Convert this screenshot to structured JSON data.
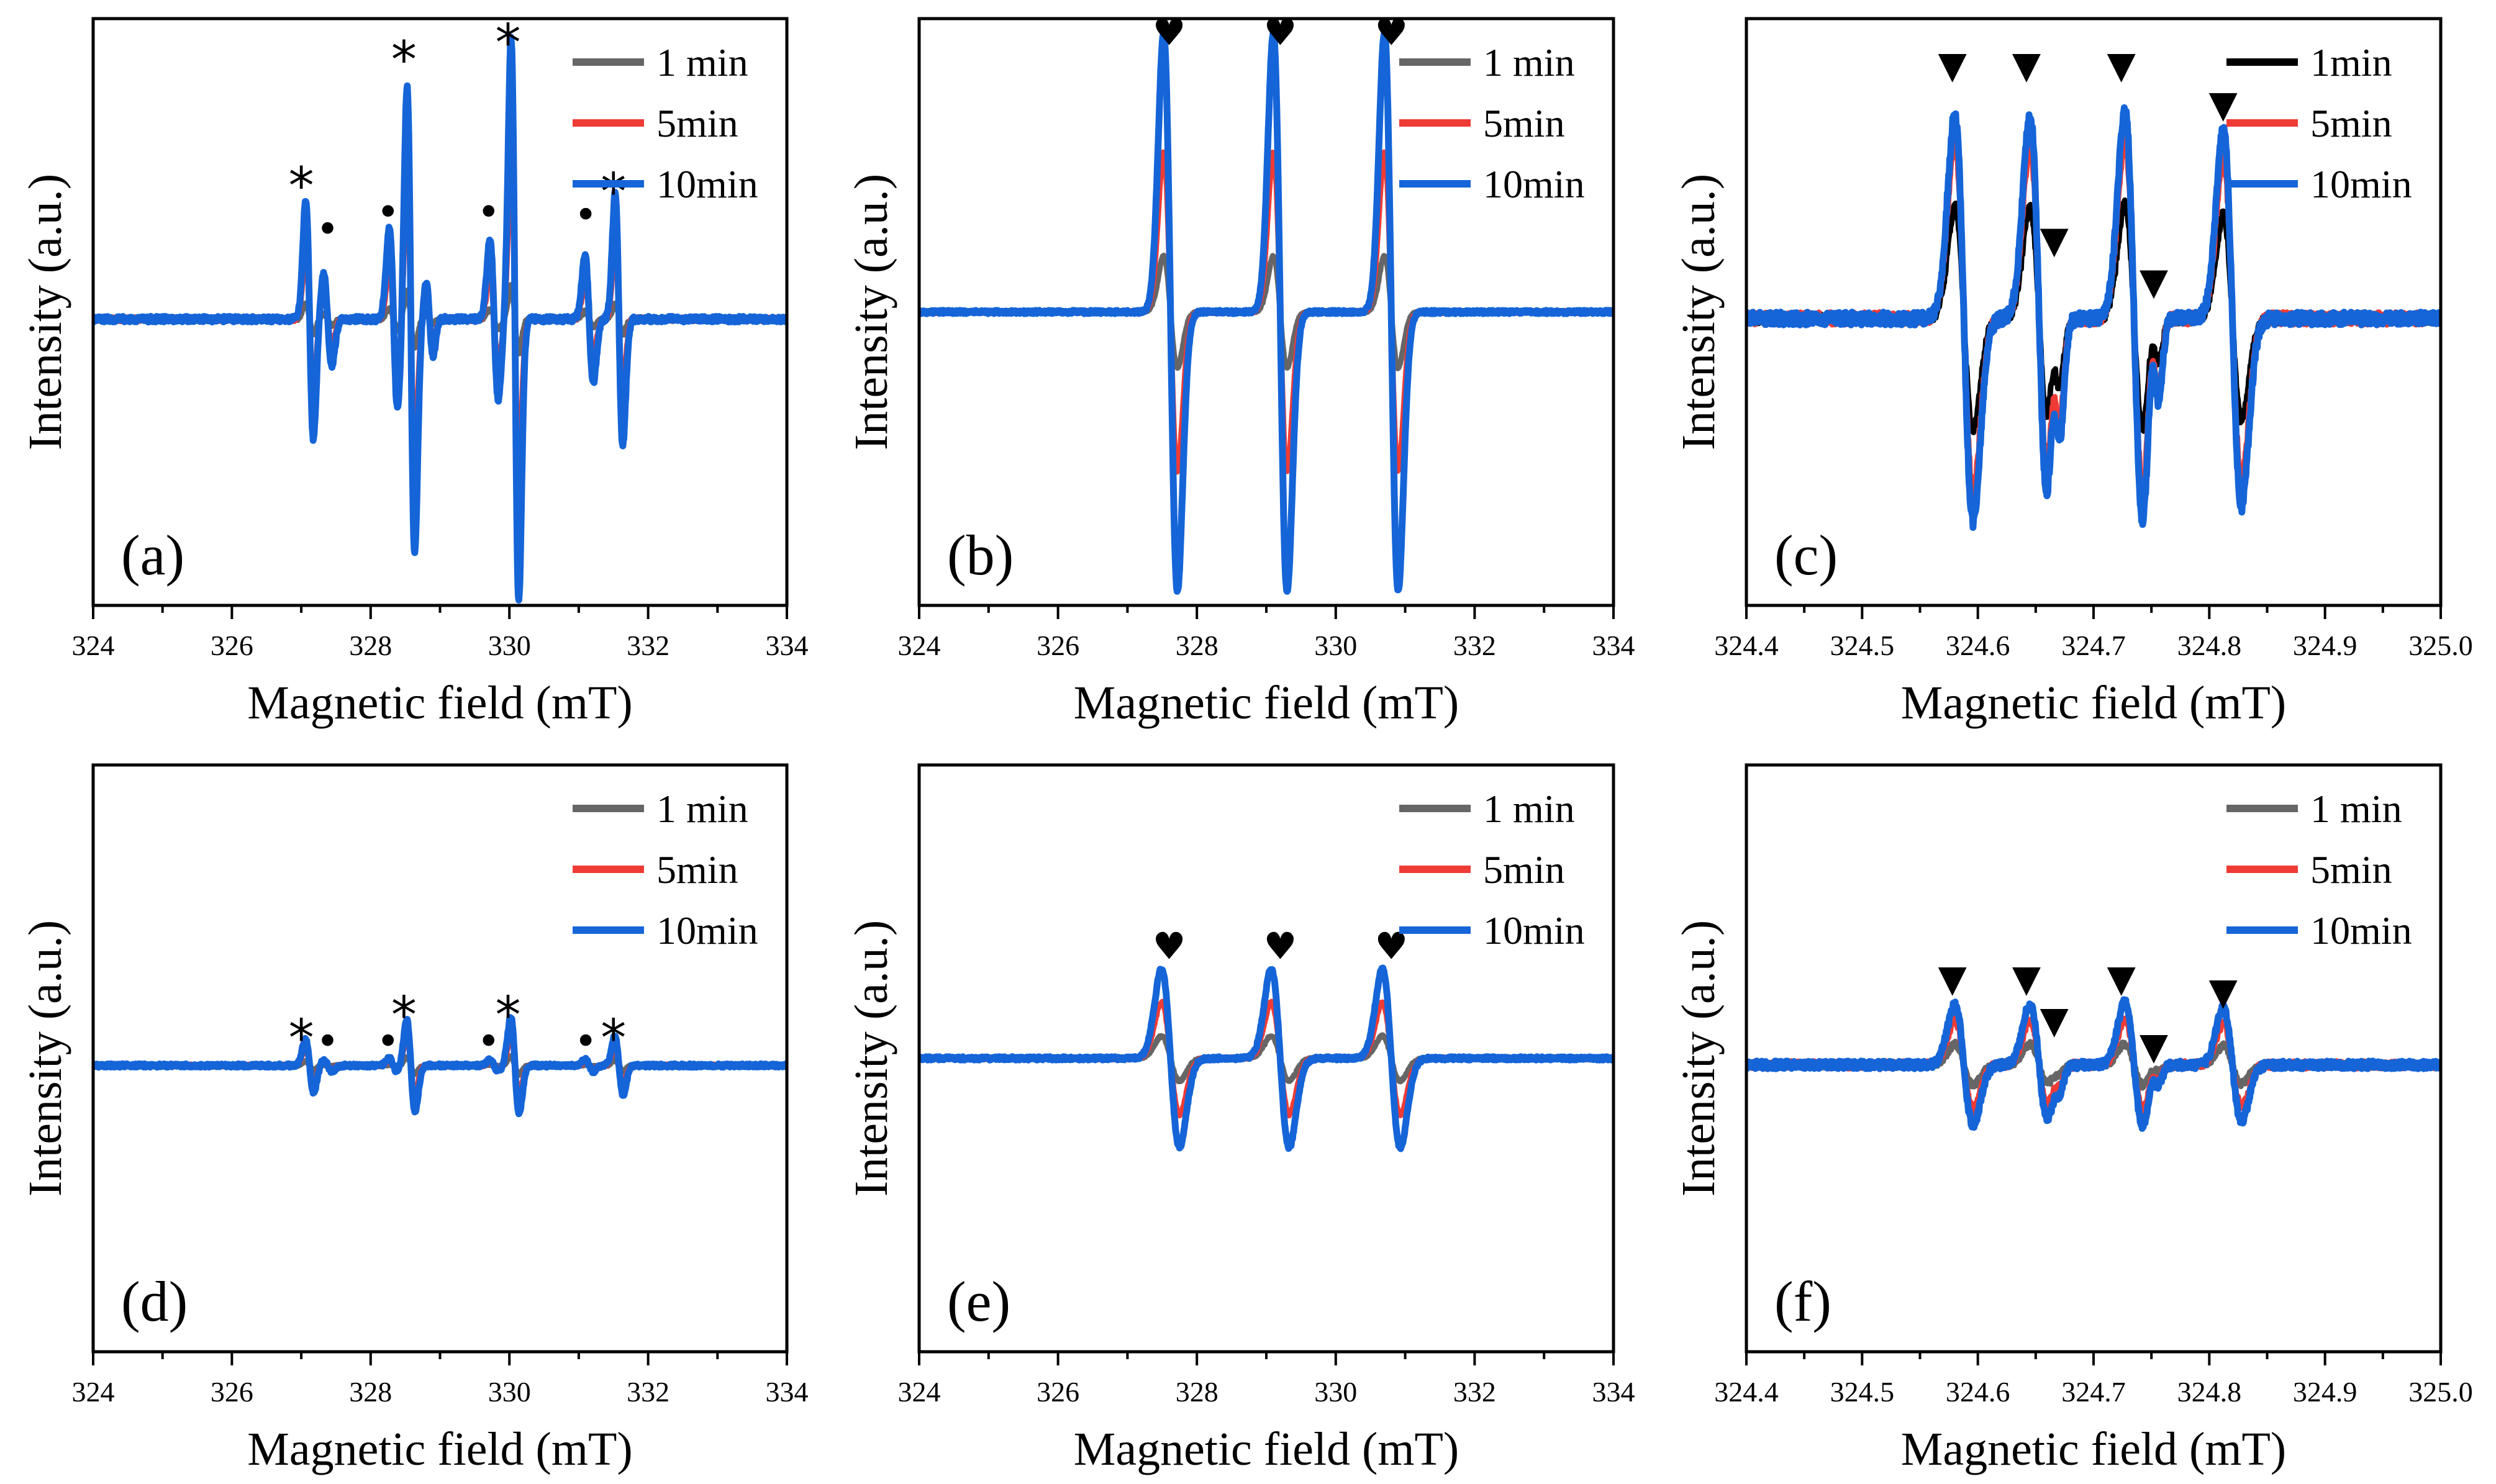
{
  "figure": {
    "colors": {
      "1 min": "#666666",
      "5min": "#ef3b36",
      "10min": "#1565d8",
      "frame": "#000000"
    }
  },
  "chart_data": [
    {
      "type": "line",
      "panel_label": "(a)",
      "xlabel": "Magnetic field (mT)",
      "ylabel": "Intensity (a.u.)",
      "xlim": [
        324,
        334
      ],
      "ylim": [
        -1.0,
        1.05
      ],
      "xticks": [
        324,
        326,
        328,
        330,
        332,
        334
      ],
      "xticklabels": [
        "324",
        "326",
        "328",
        "330",
        "332",
        "334"
      ],
      "grid": false,
      "legend_position": "top-right",
      "legend": [
        "1 min",
        "5min",
        "10min"
      ],
      "series": [
        {
          "name": "1 min",
          "scale": 0.12,
          "noise": 0.006
        },
        {
          "name": "5min",
          "scale": 0.55,
          "noise": 0.008
        },
        {
          "name": "10min",
          "scale": 1.0,
          "noise": 0.01
        }
      ],
      "lines": [
        {
          "center": 327.12,
          "amp": 0.42,
          "width": 0.055,
          "group": "star"
        },
        {
          "center": 327.38,
          "amp": 0.16,
          "width": 0.06,
          "group": "dot"
        },
        {
          "center": 328.58,
          "amp": 0.82,
          "width": 0.055,
          "group": "star"
        },
        {
          "center": 328.33,
          "amp": 0.32,
          "width": 0.06,
          "group": "dot"
        },
        {
          "center": 328.85,
          "amp": 0.13,
          "width": 0.05,
          "group": "dot"
        },
        {
          "center": 330.08,
          "amp": 0.98,
          "width": 0.055,
          "group": "star"
        },
        {
          "center": 329.78,
          "amp": 0.28,
          "width": 0.06,
          "group": "dot"
        },
        {
          "center": 331.15,
          "amp": 0.22,
          "width": 0.06,
          "group": "dot"
        },
        {
          "center": 331.58,
          "amp": 0.44,
          "width": 0.055,
          "group": "star"
        }
      ],
      "markers": [
        {
          "x": 327.0,
          "y": 0.5,
          "symbol": "*"
        },
        {
          "x": 327.38,
          "y": 0.28,
          "symbol": "•"
        },
        {
          "x": 328.25,
          "y": 0.34,
          "symbol": "•"
        },
        {
          "x": 328.48,
          "y": 0.94,
          "symbol": "*"
        },
        {
          "x": 329.7,
          "y": 0.34,
          "symbol": "•"
        },
        {
          "x": 329.98,
          "y": 1.0,
          "symbol": "*"
        },
        {
          "x": 331.1,
          "y": 0.33,
          "symbol": "•"
        },
        {
          "x": 331.5,
          "y": 0.48,
          "symbol": "*"
        }
      ]
    },
    {
      "type": "line",
      "panel_label": "(b)",
      "xlabel": "Magnetic field (mT)",
      "ylabel": "Intensity (a.u.)",
      "xlim": [
        324,
        334
      ],
      "ylim": [
        -1.05,
        1.05
      ],
      "xticks": [
        324,
        326,
        328,
        330,
        332,
        334
      ],
      "xticklabels": [
        "324",
        "326",
        "328",
        "330",
        "332",
        "334"
      ],
      "grid": false,
      "legend_position": "top-right",
      "legend": [
        "1 min",
        "5min",
        "10min"
      ],
      "series": [
        {
          "name": "1 min",
          "scale": 0.2,
          "noise": 0.004
        },
        {
          "name": "5min",
          "scale": 0.57,
          "noise": 0.005
        },
        {
          "name": "10min",
          "scale": 1.0,
          "noise": 0.006
        }
      ],
      "lines": [
        {
          "center": 327.62,
          "amp": 1.0,
          "width": 0.1,
          "group": "heart"
        },
        {
          "center": 329.2,
          "amp": 1.0,
          "width": 0.1,
          "group": "heart"
        },
        {
          "center": 330.8,
          "amp": 1.0,
          "width": 0.1,
          "group": "heart"
        }
      ],
      "markers": [
        {
          "x": 327.6,
          "y": 1.0,
          "symbol": "♥"
        },
        {
          "x": 329.2,
          "y": 1.0,
          "symbol": "♥"
        },
        {
          "x": 330.8,
          "y": 1.0,
          "symbol": "♥"
        }
      ]
    },
    {
      "type": "line",
      "panel_label": "(c)",
      "xlabel": "Magnetic field (mT)",
      "ylabel": "Intensity (a.u.)",
      "xlim": [
        324.4,
        325.0
      ],
      "ylim": [
        -1.1,
        1.15
      ],
      "xticks": [
        324.4,
        324.5,
        324.6,
        324.7,
        324.8,
        324.9,
        325.0
      ],
      "xticklabels": [
        "324.4",
        "324.5",
        "324.6",
        "324.7",
        "324.8",
        "324.9",
        "325.0"
      ],
      "grid": false,
      "legend_position": "top-right",
      "legend": [
        "1min",
        "5min",
        "10min"
      ],
      "series": [
        {
          "name": "1min",
          "scale": 0.55,
          "noise": 0.02
        },
        {
          "name": "5min",
          "scale": 0.85,
          "noise": 0.025
        },
        {
          "name": "10min",
          "scale": 1.0,
          "noise": 0.025
        }
      ],
      "lines": [
        {
          "center": 324.588,
          "amp": 0.78,
          "width": 0.008,
          "group": "tri"
        },
        {
          "center": 324.653,
          "amp": 0.78,
          "width": 0.008,
          "group": "tri"
        },
        {
          "center": 324.668,
          "amp": 0.25,
          "width": 0.004,
          "group": "tri"
        },
        {
          "center": 324.735,
          "amp": 0.8,
          "width": 0.008,
          "group": "tri"
        },
        {
          "center": 324.753,
          "amp": 0.22,
          "width": 0.004,
          "group": "tri"
        },
        {
          "center": 324.82,
          "amp": 0.72,
          "width": 0.008,
          "group": "tri"
        }
      ],
      "markers": [
        {
          "x": 324.578,
          "y": 0.97,
          "symbol": "▼"
        },
        {
          "x": 324.642,
          "y": 0.97,
          "symbol": "▼"
        },
        {
          "x": 324.666,
          "y": 0.3,
          "symbol": "▼"
        },
        {
          "x": 324.724,
          "y": 0.97,
          "symbol": "▼"
        },
        {
          "x": 324.752,
          "y": 0.14,
          "symbol": "▼"
        },
        {
          "x": 324.812,
          "y": 0.82,
          "symbol": "▼"
        }
      ]
    },
    {
      "type": "line",
      "panel_label": "(d)",
      "xlabel": "Magnetic field (mT)",
      "ylabel": "Intensity (a.u.)",
      "xlim": [
        324,
        334
      ],
      "ylim": [
        -1.0,
        1.05
      ],
      "xticks": [
        324,
        326,
        328,
        330,
        332,
        334
      ],
      "xticklabels": [
        "324",
        "326",
        "328",
        "330",
        "332",
        "334"
      ],
      "grid": false,
      "legend_position": "top-right",
      "legend": [
        "1 min",
        "5min",
        "10min"
      ],
      "series": [
        {
          "name": "1 min",
          "scale": 0.03,
          "noise": 0.004
        },
        {
          "name": "5min",
          "scale": 0.1,
          "noise": 0.005
        },
        {
          "name": "10min",
          "scale": 0.17,
          "noise": 0.006
        }
      ],
      "lines": [
        {
          "center": 327.12,
          "amp": 0.55,
          "width": 0.06,
          "group": "star"
        },
        {
          "center": 327.38,
          "amp": 0.12,
          "width": 0.06,
          "group": "dot"
        },
        {
          "center": 328.58,
          "amp": 0.95,
          "width": 0.06,
          "group": "star"
        },
        {
          "center": 328.33,
          "amp": 0.15,
          "width": 0.06,
          "group": "dot"
        },
        {
          "center": 330.08,
          "amp": 1.0,
          "width": 0.06,
          "group": "star"
        },
        {
          "center": 329.78,
          "amp": 0.12,
          "width": 0.06,
          "group": "dot"
        },
        {
          "center": 331.15,
          "amp": 0.12,
          "width": 0.06,
          "group": "dot"
        },
        {
          "center": 331.58,
          "amp": 0.6,
          "width": 0.06,
          "group": "star"
        }
      ],
      "markers": [
        {
          "x": 327.0,
          "y": 0.13,
          "symbol": "*"
        },
        {
          "x": 327.38,
          "y": 0.05,
          "symbol": "•"
        },
        {
          "x": 328.25,
          "y": 0.05,
          "symbol": "•"
        },
        {
          "x": 328.48,
          "y": 0.21,
          "symbol": "*"
        },
        {
          "x": 329.7,
          "y": 0.05,
          "symbol": "•"
        },
        {
          "x": 329.98,
          "y": 0.21,
          "symbol": "*"
        },
        {
          "x": 331.1,
          "y": 0.05,
          "symbol": "•"
        },
        {
          "x": 331.5,
          "y": 0.13,
          "symbol": "*"
        }
      ]
    },
    {
      "type": "line",
      "panel_label": "(e)",
      "xlabel": "Magnetic field (mT)",
      "ylabel": "Intensity (a.u.)",
      "xlim": [
        324,
        334
      ],
      "ylim": [
        -1.05,
        1.05
      ],
      "xticks": [
        324,
        326,
        328,
        330,
        332,
        334
      ],
      "xticklabels": [
        "324",
        "326",
        "328",
        "330",
        "332",
        "334"
      ],
      "grid": false,
      "legend_position": "top-right",
      "legend": [
        "1 min",
        "5min",
        "10min"
      ],
      "series": [
        {
          "name": "1 min",
          "scale": 0.08,
          "noise": 0.004
        },
        {
          "name": "5min",
          "scale": 0.2,
          "noise": 0.005
        },
        {
          "name": "10min",
          "scale": 0.32,
          "noise": 0.006
        }
      ],
      "lines": [
        {
          "center": 327.62,
          "amp": 1.0,
          "width": 0.13,
          "group": "heart"
        },
        {
          "center": 329.2,
          "amp": 1.0,
          "width": 0.13,
          "group": "heart"
        },
        {
          "center": 330.8,
          "amp": 1.0,
          "width": 0.13,
          "group": "heart"
        }
      ],
      "markers": [
        {
          "x": 327.6,
          "y": 0.4,
          "symbol": "♥"
        },
        {
          "x": 329.2,
          "y": 0.4,
          "symbol": "♥"
        },
        {
          "x": 330.8,
          "y": 0.4,
          "symbol": "♥"
        }
      ]
    },
    {
      "type": "line",
      "panel_label": "(f)",
      "xlabel": "Magnetic field (mT)",
      "ylabel": "Intensity (a.u.)",
      "xlim": [
        324.4,
        325.0
      ],
      "ylim": [
        -1.1,
        1.15
      ],
      "xticks": [
        324.4,
        324.5,
        324.6,
        324.7,
        324.8,
        324.9,
        325.0
      ],
      "xticklabels": [
        "324.4",
        "324.5",
        "324.6",
        "324.7",
        "324.8",
        "324.9",
        "325.0"
      ],
      "grid": false,
      "legend_position": "top-right",
      "legend": [
        "1 min",
        "5min",
        "10min"
      ],
      "series": [
        {
          "name": "1 min",
          "scale": 0.1,
          "noise": 0.012
        },
        {
          "name": "5min",
          "scale": 0.22,
          "noise": 0.015
        },
        {
          "name": "10min",
          "scale": 0.3,
          "noise": 0.015
        }
      ],
      "lines": [
        {
          "center": 324.588,
          "amp": 0.78,
          "width": 0.008,
          "group": "tri"
        },
        {
          "center": 324.653,
          "amp": 0.78,
          "width": 0.008,
          "group": "tri"
        },
        {
          "center": 324.668,
          "amp": 0.15,
          "width": 0.004,
          "group": "tri"
        },
        {
          "center": 324.735,
          "amp": 0.8,
          "width": 0.008,
          "group": "tri"
        },
        {
          "center": 324.753,
          "amp": 0.15,
          "width": 0.004,
          "group": "tri"
        },
        {
          "center": 324.82,
          "amp": 0.72,
          "width": 0.008,
          "group": "tri"
        }
      ],
      "markers": [
        {
          "x": 324.578,
          "y": 0.33,
          "symbol": "▼"
        },
        {
          "x": 324.642,
          "y": 0.33,
          "symbol": "▼"
        },
        {
          "x": 324.666,
          "y": 0.17,
          "symbol": "▼"
        },
        {
          "x": 324.724,
          "y": 0.33,
          "symbol": "▼"
        },
        {
          "x": 324.752,
          "y": 0.07,
          "symbol": "▼"
        },
        {
          "x": 324.812,
          "y": 0.28,
          "symbol": "▼"
        }
      ]
    }
  ]
}
